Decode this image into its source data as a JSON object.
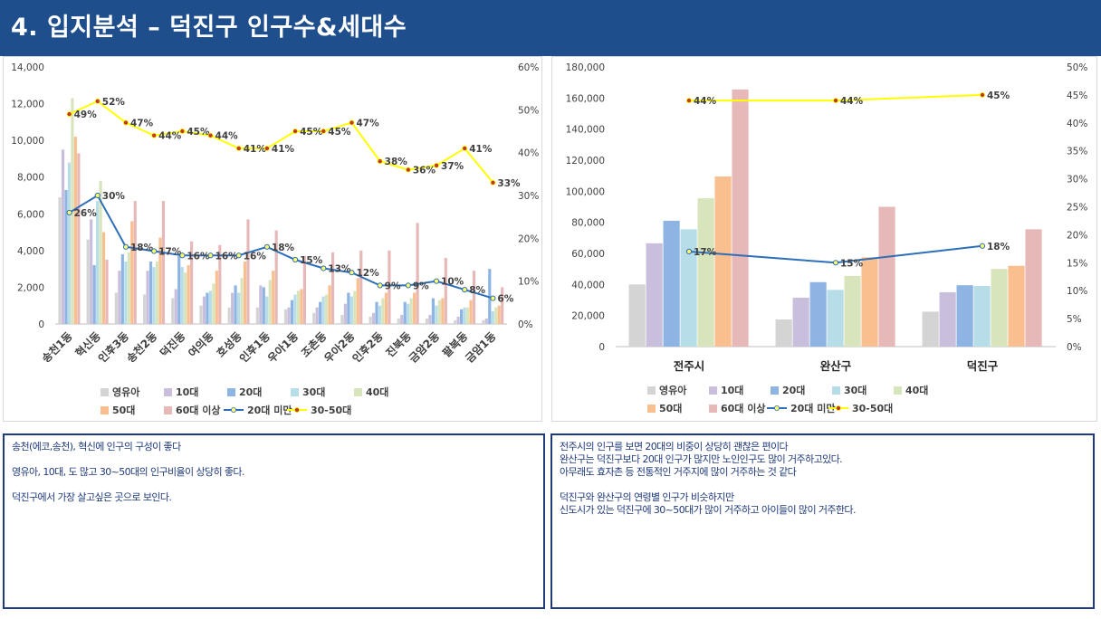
{
  "header": {
    "title": "4. 입지분석 – 덕진구 인구수&세대수"
  },
  "legend": {
    "bars": [
      "영유아",
      "10대",
      "20대",
      "30대",
      "40대",
      "50대",
      "60대 이상"
    ],
    "lines": [
      "20대 미만",
      "30-50대"
    ]
  },
  "colors": {
    "bars": [
      "#d4d4d4",
      "#c9bfdd",
      "#8db4e2",
      "#b7dde8",
      "#d8e4bc",
      "#fabf8f",
      "#e6b8b7"
    ],
    "line_under20": "#2e6fba",
    "line_30_50": "#ffff00",
    "marker_30_50": "#c0392b",
    "marker_under20_fill": "#ffff66",
    "header_bg": "#1e4e8c",
    "box_border": "#1f3a7a"
  },
  "chart_data": [
    {
      "type": "bar",
      "categories": [
        "송천1동",
        "혁신동",
        "인후3동",
        "송천2동",
        "덕진동",
        "여의동",
        "호성동",
        "인후1동",
        "우아1동",
        "조촌동",
        "우아2동",
        "인후2동",
        "진북동",
        "금암2동",
        "팔복동",
        "금암1동"
      ],
      "y_ticks": [
        "0",
        "2,000",
        "4,000",
        "6,000",
        "8,000",
        "10,000",
        "12,000",
        "14,000"
      ],
      "y2_ticks": [
        "0%",
        "10%",
        "20%",
        "30%",
        "40%",
        "50%",
        "60%"
      ],
      "ylim": [
        0,
        14000
      ],
      "y2lim": [
        0,
        60
      ],
      "series": [
        {
          "name": "영유아",
          "values": [
            6900,
            4600,
            1700,
            1600,
            1400,
            1000,
            900,
            900,
            800,
            600,
            500,
            400,
            300,
            300,
            200,
            200
          ]
        },
        {
          "name": "10대",
          "values": [
            9500,
            5700,
            2900,
            2900,
            1900,
            1500,
            1700,
            2100,
            900,
            900,
            1100,
            600,
            500,
            500,
            400,
            300
          ]
        },
        {
          "name": "20대",
          "values": [
            7300,
            3200,
            3800,
            3400,
            3700,
            1700,
            2100,
            2000,
            1300,
            1200,
            1700,
            1200,
            1200,
            1400,
            800,
            3000
          ]
        },
        {
          "name": "30대",
          "values": [
            8800,
            6700,
            3400,
            3100,
            3100,
            1800,
            1700,
            1500,
            1600,
            1500,
            1500,
            1000,
            1100,
            1000,
            900,
            700
          ]
        },
        {
          "name": "40대",
          "values": [
            12300,
            7800,
            3900,
            3400,
            2800,
            2200,
            2500,
            2400,
            1800,
            1600,
            1800,
            1400,
            1400,
            1300,
            900,
            900
          ]
        },
        {
          "name": "50대",
          "values": [
            10200,
            5000,
            5600,
            4700,
            3200,
            2900,
            3400,
            2900,
            1900,
            2100,
            2500,
            1700,
            1700,
            1400,
            1300,
            1000
          ]
        },
        {
          "name": "60대 이상",
          "values": [
            9300,
            3500,
            6700,
            6700,
            4500,
            4300,
            5700,
            5100,
            3700,
            3900,
            4000,
            4000,
            5500,
            3600,
            2900,
            2000
          ]
        }
      ],
      "lines": [
        {
          "name": "20대 미만",
          "axis": "secondary",
          "values": [
            26,
            30,
            18,
            17,
            16,
            16,
            16,
            18,
            15,
            13,
            12,
            9,
            9,
            10,
            8,
            6
          ],
          "labels": [
            "26%",
            "30%",
            "18%",
            "17%",
            "16%",
            "16%",
            "16%",
            "18%",
            "15%",
            "13%",
            "12%",
            "9%",
            "9%",
            "10%",
            "8%",
            "6%"
          ]
        },
        {
          "name": "30-50대",
          "axis": "secondary",
          "values": [
            49,
            52,
            47,
            44,
            45,
            44,
            41,
            41,
            45,
            45,
            47,
            38,
            36,
            37,
            41,
            33
          ],
          "labels": [
            "49%",
            "52%",
            "47%",
            "44%",
            "45%",
            "44%",
            "41%",
            "41%",
            "45%",
            "45%",
            "47%",
            "38%",
            "36%",
            "37%",
            "41%",
            "33%"
          ]
        }
      ]
    },
    {
      "type": "bar",
      "categories": [
        "전주시",
        "완산구",
        "덕진구"
      ],
      "y_ticks": [
        "0",
        "20,000",
        "40,000",
        "60,000",
        "80,000",
        "100,000",
        "120,000",
        "140,000",
        "160,000",
        "180,000"
      ],
      "y2_ticks": [
        "0%",
        "5%",
        "10%",
        "15%",
        "20%",
        "25%",
        "30%",
        "35%",
        "40%",
        "45%",
        "50%"
      ],
      "ylim": [
        0,
        180000
      ],
      "y2lim": [
        0,
        50
      ],
      "series": [
        {
          "name": "영유아",
          "values": [
            40000,
            17500,
            22500
          ]
        },
        {
          "name": "10대",
          "values": [
            66500,
            31500,
            35000
          ]
        },
        {
          "name": "20대",
          "values": [
            81000,
            41500,
            39500
          ]
        },
        {
          "name": "30대",
          "values": [
            75500,
            36500,
            39000
          ]
        },
        {
          "name": "40대",
          "values": [
            95500,
            45500,
            50000
          ]
        },
        {
          "name": "50대",
          "values": [
            109500,
            57500,
            52000
          ]
        },
        {
          "name": "60대 이상",
          "values": [
            165500,
            90000,
            75500
          ]
        }
      ],
      "lines": [
        {
          "name": "20대 미만",
          "axis": "secondary",
          "values": [
            17,
            15,
            18
          ],
          "labels": [
            "17%",
            "15%",
            "18%"
          ]
        },
        {
          "name": "30-50대",
          "axis": "secondary",
          "values": [
            44,
            44,
            45
          ],
          "labels": [
            "44%",
            "44%",
            "45%"
          ]
        }
      ]
    }
  ],
  "notes": {
    "left": [
      "송천(에코,송천), 혁신에 인구의 구성이 좋다",
      "",
      "영유아, 10대, 도 많고 30~50대의 인구비율이 상당히 좋다.",
      "",
      "덕진구에서 가장 살고싶은 곳으로 보인다."
    ],
    "right": [
      "전주시의 인구를 보면 20대의 비중이 상당히 괜찮은 편이다",
      "완산구는 덕진구보다 20대 인구가 많지만 노인인구도 많이 거주하고있다.",
      "아무래도 효자촌 등 전통적인 거주지에 많이 거주하는 것 같다",
      "",
      "덕진구와 완산구의 연령별 인구가 비슷하지만",
      "신도시가 있는 덕진구에 30~50대가 많이 거주하고 아이들이 많이 거주한다."
    ]
  }
}
